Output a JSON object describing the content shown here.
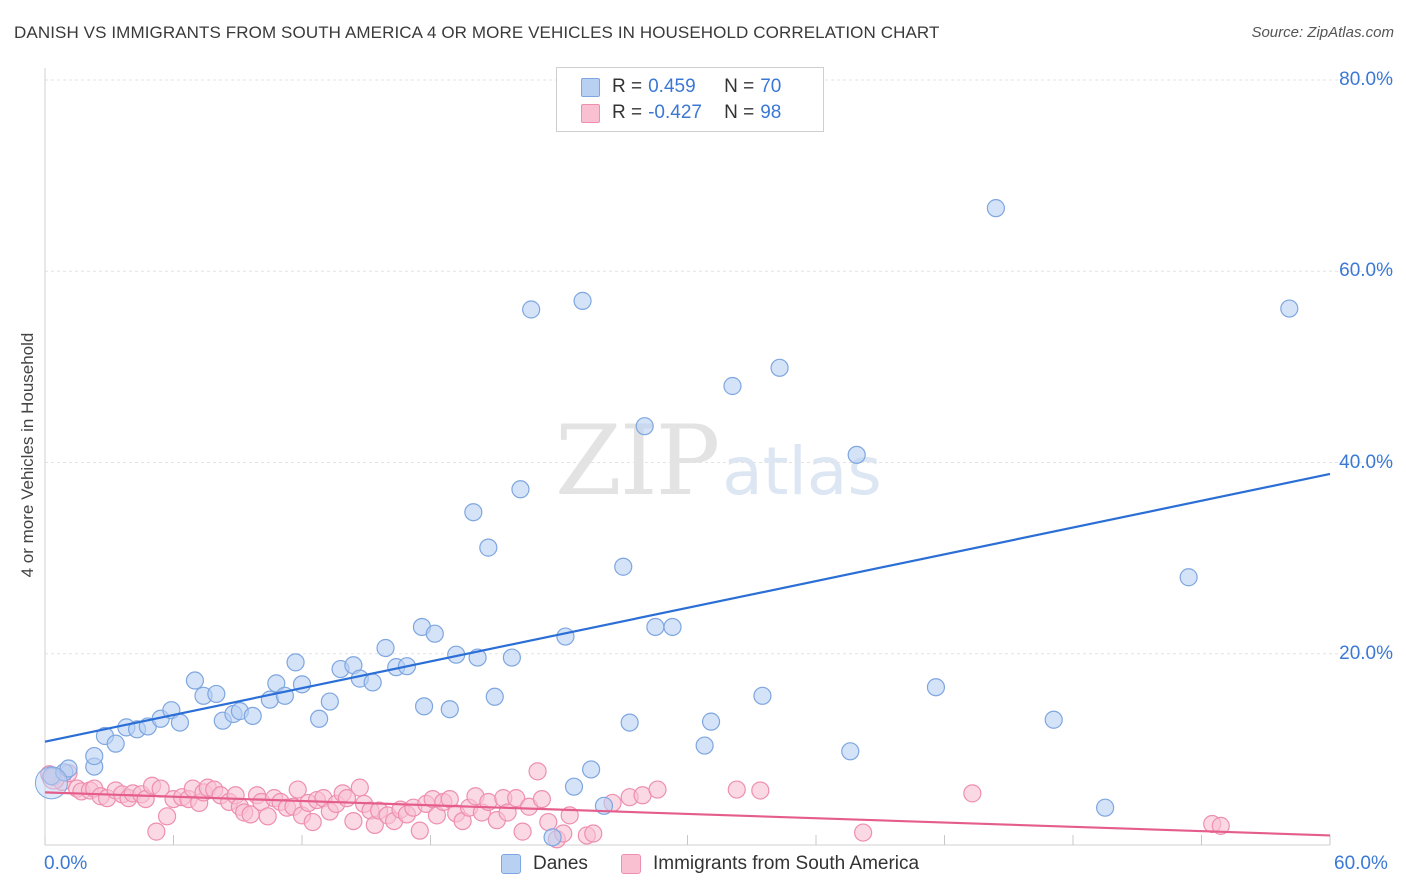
{
  "title": "DANISH VS IMMIGRANTS FROM SOUTH AMERICA 4 OR MORE VEHICLES IN HOUSEHOLD CORRELATION CHART",
  "source": "Source: ZipAtlas.com",
  "watermark": {
    "zip": "ZIP",
    "atlas": "atlas"
  },
  "legend": {
    "rows": [
      {
        "r_label": "R =",
        "r_value": "0.459",
        "n_label": "N =",
        "n_value": "70"
      },
      {
        "r_label": "R =",
        "r_value": "-0.427",
        "n_label": "N =",
        "n_value": "98"
      }
    ]
  },
  "colors": {
    "blue_fill": "#b8d1f3",
    "blue_stroke": "#7ea6e0",
    "blue_line": "#2b6fd6",
    "pink_fill": "#f9c0d2",
    "pink_stroke": "#ee8fb0",
    "pink_line": "#e45d8c",
    "grid": "#e3e3e3",
    "tick_text": "#3b78d4"
  },
  "chart_data": {
    "type": "scatter",
    "title": "DANISH VS IMMIGRANTS FROM SOUTH AMERICA 4 OR MORE VEHICLES IN HOUSEHOLD CORRELATION CHART",
    "xlabel": "",
    "ylabel": "4 or more Vehicles in Household",
    "xlim": [
      0,
      60
    ],
    "ylim": [
      0,
      80
    ],
    "x_tick_labels": [
      "0.0%",
      "60.0%"
    ],
    "y_ticks": [
      20,
      40,
      60,
      80
    ],
    "y_tick_labels": [
      "20.0%",
      "40.0%",
      "60.0%",
      "80.0%"
    ],
    "legend_position": "bottom",
    "series": [
      {
        "name": "Danes",
        "r": 0.459,
        "n": 70,
        "trend": {
          "x": [
            0,
            60
          ],
          "y": [
            10.8,
            38.8
          ]
        },
        "points": [
          [
            0.3,
            7.2
          ],
          [
            0.9,
            7.6
          ],
          [
            1.1,
            8.0
          ],
          [
            2.3,
            8.2
          ],
          [
            2.3,
            9.3
          ],
          [
            2.8,
            11.4
          ],
          [
            3.3,
            10.6
          ],
          [
            3.8,
            12.3
          ],
          [
            4.3,
            12.1
          ],
          [
            4.8,
            12.4
          ],
          [
            5.4,
            13.2
          ],
          [
            5.9,
            14.1
          ],
          [
            6.3,
            12.8
          ],
          [
            7.0,
            17.2
          ],
          [
            7.4,
            15.6
          ],
          [
            8.0,
            15.8
          ],
          [
            8.3,
            13.0
          ],
          [
            8.8,
            13.7
          ],
          [
            9.1,
            14.0
          ],
          [
            9.7,
            13.5
          ],
          [
            10.5,
            15.2
          ],
          [
            10.8,
            16.9
          ],
          [
            11.2,
            15.6
          ],
          [
            11.7,
            19.1
          ],
          [
            12.0,
            16.8
          ],
          [
            12.8,
            13.2
          ],
          [
            13.3,
            15.0
          ],
          [
            13.8,
            18.4
          ],
          [
            14.4,
            18.8
          ],
          [
            14.7,
            17.4
          ],
          [
            15.3,
            17.0
          ],
          [
            15.9,
            20.6
          ],
          [
            16.4,
            18.6
          ],
          [
            16.9,
            18.7
          ],
          [
            17.6,
            22.8
          ],
          [
            17.7,
            14.5
          ],
          [
            18.2,
            22.1
          ],
          [
            18.9,
            14.2
          ],
          [
            19.2,
            19.9
          ],
          [
            20.0,
            34.8
          ],
          [
            20.2,
            19.6
          ],
          [
            20.7,
            31.1
          ],
          [
            21.0,
            15.5
          ],
          [
            21.8,
            19.6
          ],
          [
            22.2,
            37.2
          ],
          [
            22.7,
            56.0
          ],
          [
            23.7,
            0.8
          ],
          [
            24.3,
            21.8
          ],
          [
            24.7,
            6.1
          ],
          [
            25.1,
            56.9
          ],
          [
            25.5,
            7.9
          ],
          [
            26.1,
            4.1
          ],
          [
            27.0,
            29.1
          ],
          [
            27.3,
            12.8
          ],
          [
            28.0,
            43.8
          ],
          [
            28.5,
            22.8
          ],
          [
            29.3,
            22.8
          ],
          [
            30.8,
            10.4
          ],
          [
            31.1,
            12.9
          ],
          [
            32.1,
            48.0
          ],
          [
            33.5,
            15.6
          ],
          [
            34.3,
            49.9
          ],
          [
            37.6,
            9.8
          ],
          [
            37.9,
            40.8
          ],
          [
            41.6,
            16.5
          ],
          [
            44.4,
            66.6
          ],
          [
            47.1,
            13.1
          ],
          [
            49.5,
            3.9
          ],
          [
            53.4,
            28.0
          ],
          [
            58.1,
            56.1
          ]
        ]
      },
      {
        "name": "Immigrants from South America",
        "r": -0.427,
        "n": 98,
        "trend": {
          "x": [
            0,
            60
          ],
          "y": [
            5.5,
            1.0
          ]
        },
        "points": [
          [
            0.2,
            7.4
          ],
          [
            0.4,
            7.1
          ],
          [
            0.8,
            6.6
          ],
          [
            1.1,
            7.5
          ],
          [
            1.5,
            5.9
          ],
          [
            1.7,
            5.6
          ],
          [
            2.1,
            5.7
          ],
          [
            2.3,
            5.9
          ],
          [
            2.6,
            5.1
          ],
          [
            2.9,
            4.9
          ],
          [
            3.3,
            5.7
          ],
          [
            3.6,
            5.3
          ],
          [
            3.9,
            4.9
          ],
          [
            4.1,
            5.4
          ],
          [
            4.5,
            5.3
          ],
          [
            4.7,
            4.8
          ],
          [
            5.0,
            6.2
          ],
          [
            5.2,
            1.4
          ],
          [
            5.4,
            5.9
          ],
          [
            5.7,
            3.0
          ],
          [
            6.0,
            4.8
          ],
          [
            6.4,
            5.0
          ],
          [
            6.7,
            4.8
          ],
          [
            6.9,
            5.9
          ],
          [
            7.2,
            4.4
          ],
          [
            7.4,
            5.5
          ],
          [
            7.6,
            6.0
          ],
          [
            7.9,
            5.8
          ],
          [
            8.2,
            5.2
          ],
          [
            8.6,
            4.5
          ],
          [
            8.9,
            5.2
          ],
          [
            9.1,
            4.0
          ],
          [
            9.3,
            3.4
          ],
          [
            9.6,
            3.2
          ],
          [
            9.9,
            5.2
          ],
          [
            10.1,
            4.5
          ],
          [
            10.4,
            3.0
          ],
          [
            10.7,
            4.9
          ],
          [
            11.0,
            4.5
          ],
          [
            11.3,
            3.9
          ],
          [
            11.6,
            4.0
          ],
          [
            11.8,
            5.8
          ],
          [
            12.0,
            3.1
          ],
          [
            12.3,
            4.4
          ],
          [
            12.5,
            2.4
          ],
          [
            12.7,
            4.7
          ],
          [
            13.0,
            4.9
          ],
          [
            13.3,
            3.5
          ],
          [
            13.6,
            4.3
          ],
          [
            13.9,
            5.4
          ],
          [
            14.1,
            4.9
          ],
          [
            14.4,
            2.5
          ],
          [
            14.7,
            6.0
          ],
          [
            14.9,
            4.3
          ],
          [
            15.2,
            3.6
          ],
          [
            15.4,
            2.1
          ],
          [
            15.6,
            3.6
          ],
          [
            16.0,
            3.1
          ],
          [
            16.3,
            2.5
          ],
          [
            16.6,
            3.7
          ],
          [
            16.9,
            3.2
          ],
          [
            17.2,
            3.9
          ],
          [
            17.5,
            1.5
          ],
          [
            17.8,
            4.3
          ],
          [
            18.1,
            4.8
          ],
          [
            18.3,
            3.1
          ],
          [
            18.6,
            4.5
          ],
          [
            18.9,
            4.8
          ],
          [
            19.2,
            3.3
          ],
          [
            19.5,
            2.5
          ],
          [
            19.8,
            3.9
          ],
          [
            20.1,
            5.1
          ],
          [
            20.4,
            3.4
          ],
          [
            20.7,
            4.5
          ],
          [
            21.1,
            2.6
          ],
          [
            21.4,
            4.9
          ],
          [
            21.6,
            3.4
          ],
          [
            22.0,
            4.9
          ],
          [
            22.3,
            1.4
          ],
          [
            22.6,
            4.0
          ],
          [
            23.0,
            7.7
          ],
          [
            23.2,
            4.8
          ],
          [
            23.5,
            2.4
          ],
          [
            23.9,
            0.6
          ],
          [
            24.2,
            1.2
          ],
          [
            24.5,
            3.1
          ],
          [
            25.3,
            1.0
          ],
          [
            25.6,
            1.2
          ],
          [
            26.5,
            4.4
          ],
          [
            27.3,
            5.0
          ],
          [
            27.9,
            5.2
          ],
          [
            28.6,
            5.8
          ],
          [
            32.3,
            5.8
          ],
          [
            33.4,
            5.7
          ],
          [
            38.2,
            1.3
          ],
          [
            43.3,
            5.4
          ],
          [
            54.5,
            2.2
          ],
          [
            54.9,
            2.0
          ]
        ]
      }
    ]
  }
}
